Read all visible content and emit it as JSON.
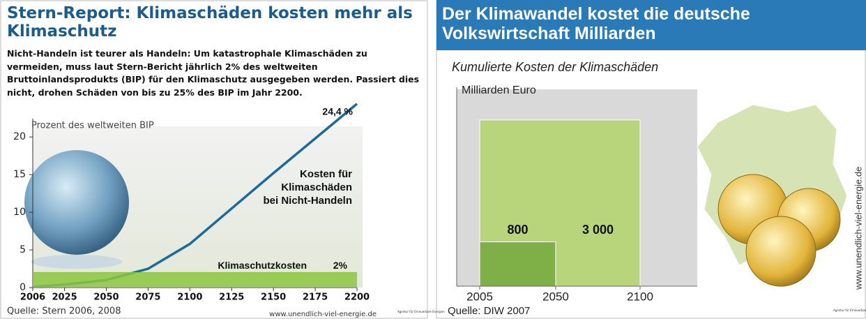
{
  "chart_data": [
    {
      "type": "line",
      "title": "Stern-Report: Klimaschäden kosten mehr als Klimaschutz",
      "subtitle": "Nicht-Handeln ist teurer als Handeln: Um katastrophale Klimaschäden zu vermeiden, muss laut Stern-Bericht jährlich 2% des weltweiten Bruttoinlandsprodukts (BIP) für den Klimaschutz ausgegeben werden. Passiert dies nicht, drohen Schäden von bis zu 25% des BIP im Jahr 2200.",
      "ylabel": "Prozent des weltweiten BIP",
      "x": [
        2006,
        2025,
        2050,
        2075,
        2100,
        2125,
        2150,
        2175,
        2200
      ],
      "xlim": [
        2006,
        2200
      ],
      "xticks": [
        2006,
        2025,
        2050,
        2075,
        2100,
        2125,
        2150,
        2175,
        2200
      ],
      "ylim": [
        0,
        21.5
      ],
      "yticks": [
        0,
        5,
        10,
        15,
        20
      ],
      "series": [
        {
          "name": "Kosten für Klimaschäden bei Nicht-Handeln",
          "color": "#1c6a9c",
          "end_label": "24,4 %",
          "values": [
            0.1,
            0.4,
            1.0,
            2.5,
            5.8,
            10.5,
            15.2,
            19.8,
            24.4
          ]
        },
        {
          "name": "Klimaschutzkosten",
          "color": "#8cc63f",
          "end_label": "2%",
          "values": [
            2,
            2,
            2,
            2,
            2,
            2,
            2,
            2,
            2
          ]
        }
      ],
      "source": "Quelle: Stern 2006, 2008",
      "url": "www.unendlich-viel-energie.de",
      "logo": "Agentur für Erneuerbare Energien"
    },
    {
      "type": "bar",
      "title": "Der Klimawandel kostet die deutsche Volkswirtschaft Milliarden",
      "subtitle": "Kumulierte Kosten der Klimaschäden",
      "ylabel": "Milliarden Euro",
      "xlim": [
        2005,
        2100
      ],
      "xticks": [
        2005,
        2050,
        2100
      ],
      "ylim": [
        0,
        3200
      ],
      "bars": [
        {
          "x": [
            2005,
            2100
          ],
          "value": 3000,
          "value_label": "3 000",
          "color": "#b9d57c"
        },
        {
          "x": [
            2005,
            2050
          ],
          "value": 800,
          "value_label": "800",
          "color": "#7fb048"
        }
      ],
      "source": "Quelle: DIW 2007",
      "url": "www.unendlich-viel-energie.de",
      "logo": "Agentur für Erneuerbare Energien"
    }
  ]
}
